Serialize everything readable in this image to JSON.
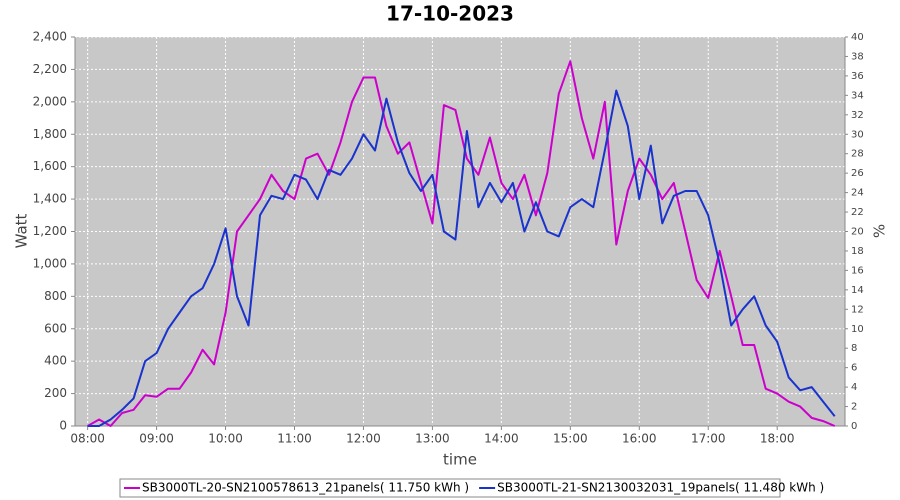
{
  "chart_data": {
    "type": "line",
    "title": "17-10-2023",
    "x_label": "time",
    "y_label": "Watt",
    "y2_label": "%",
    "x": [
      "08:00",
      "08:10",
      "08:20",
      "08:30",
      "08:40",
      "08:50",
      "09:00",
      "09:10",
      "09:20",
      "09:30",
      "09:40",
      "09:50",
      "10:00",
      "10:10",
      "10:20",
      "10:30",
      "10:40",
      "10:50",
      "11:00",
      "11:10",
      "11:20",
      "11:30",
      "11:40",
      "11:50",
      "12:00",
      "12:10",
      "12:20",
      "12:30",
      "12:40",
      "12:50",
      "13:00",
      "13:10",
      "13:20",
      "13:30",
      "13:40",
      "13:50",
      "14:00",
      "14:10",
      "14:20",
      "14:30",
      "14:40",
      "14:50",
      "15:00",
      "15:10",
      "15:20",
      "15:30",
      "15:40",
      "15:50",
      "16:00",
      "16:10",
      "16:20",
      "16:30",
      "16:40",
      "16:50",
      "17:00",
      "17:10",
      "17:20",
      "17:30",
      "17:40",
      "17:50",
      "18:00",
      "18:10",
      "18:20",
      "18:30",
      "18:40",
      "18:50"
    ],
    "xlim": [
      "07:49",
      "18:59"
    ],
    "xticks": [
      "08:00",
      "09:00",
      "10:00",
      "11:00",
      "12:00",
      "13:00",
      "14:00",
      "15:00",
      "16:00",
      "17:00",
      "18:00"
    ],
    "ylim": [
      0,
      2400
    ],
    "yticks": [
      0,
      200,
      400,
      600,
      800,
      {
        "value": 1000,
        "label": "1,000"
      },
      {
        "value": 1200,
        "label": "1,200"
      },
      {
        "value": 1400,
        "label": "1,400"
      },
      {
        "value": 1600,
        "label": "1,600"
      },
      {
        "value": 1800,
        "label": "1,800"
      },
      {
        "value": 2000,
        "label": "2,000"
      },
      {
        "value": 2200,
        "label": "2,200"
      },
      {
        "value": 2400,
        "label": "2,400"
      }
    ],
    "y2lim": [
      0,
      40
    ],
    "y2ticks": [
      0,
      2,
      4,
      6,
      8,
      10,
      12,
      14,
      16,
      18,
      20,
      22,
      24,
      26,
      28,
      30,
      32,
      34,
      36,
      38,
      40
    ],
    "grid": true,
    "series": [
      {
        "name": "SB3000TL-20-SN2100578613_21panels( 11.750 kWh )",
        "color": "#cc00cc",
        "values": [
          0,
          40,
          0,
          80,
          100,
          190,
          180,
          230,
          230,
          330,
          470,
          380,
          700,
          1200,
          1300,
          1400,
          1550,
          1450,
          1400,
          1650,
          1680,
          1550,
          1750,
          2000,
          2150,
          2150,
          1850,
          1680,
          1750,
          1500,
          1250,
          1980,
          1950,
          1650,
          1550,
          1780,
          1500,
          1400,
          1550,
          1300,
          1560,
          2050,
          2250,
          1900,
          1650,
          2000,
          1120,
          1450,
          1650,
          1550,
          1400,
          1500,
          1200,
          900,
          790,
          1080,
          800,
          500,
          500,
          230,
          200,
          150,
          120,
          50,
          30,
          0
        ]
      },
      {
        "name": "SB3000TL-21-SN2130032031_19panels( 11.480 kWh )",
        "color": "#1a33cc",
        "values": [
          0,
          0,
          40,
          100,
          170,
          400,
          450,
          600,
          700,
          800,
          850,
          1000,
          1220,
          800,
          620,
          1300,
          1420,
          1400,
          1550,
          1520,
          1400,
          1580,
          1550,
          1650,
          1800,
          1700,
          2020,
          1750,
          1560,
          1450,
          1550,
          1200,
          1150,
          1820,
          1350,
          1500,
          1380,
          1500,
          1200,
          1380,
          1200,
          1170,
          1350,
          1400,
          1350,
          1700,
          2070,
          1850,
          1400,
          1730,
          1250,
          1420,
          1450,
          1450,
          1300,
          1000,
          620,
          720,
          800,
          620,
          520,
          300,
          220,
          240,
          150,
          60
        ]
      }
    ]
  }
}
